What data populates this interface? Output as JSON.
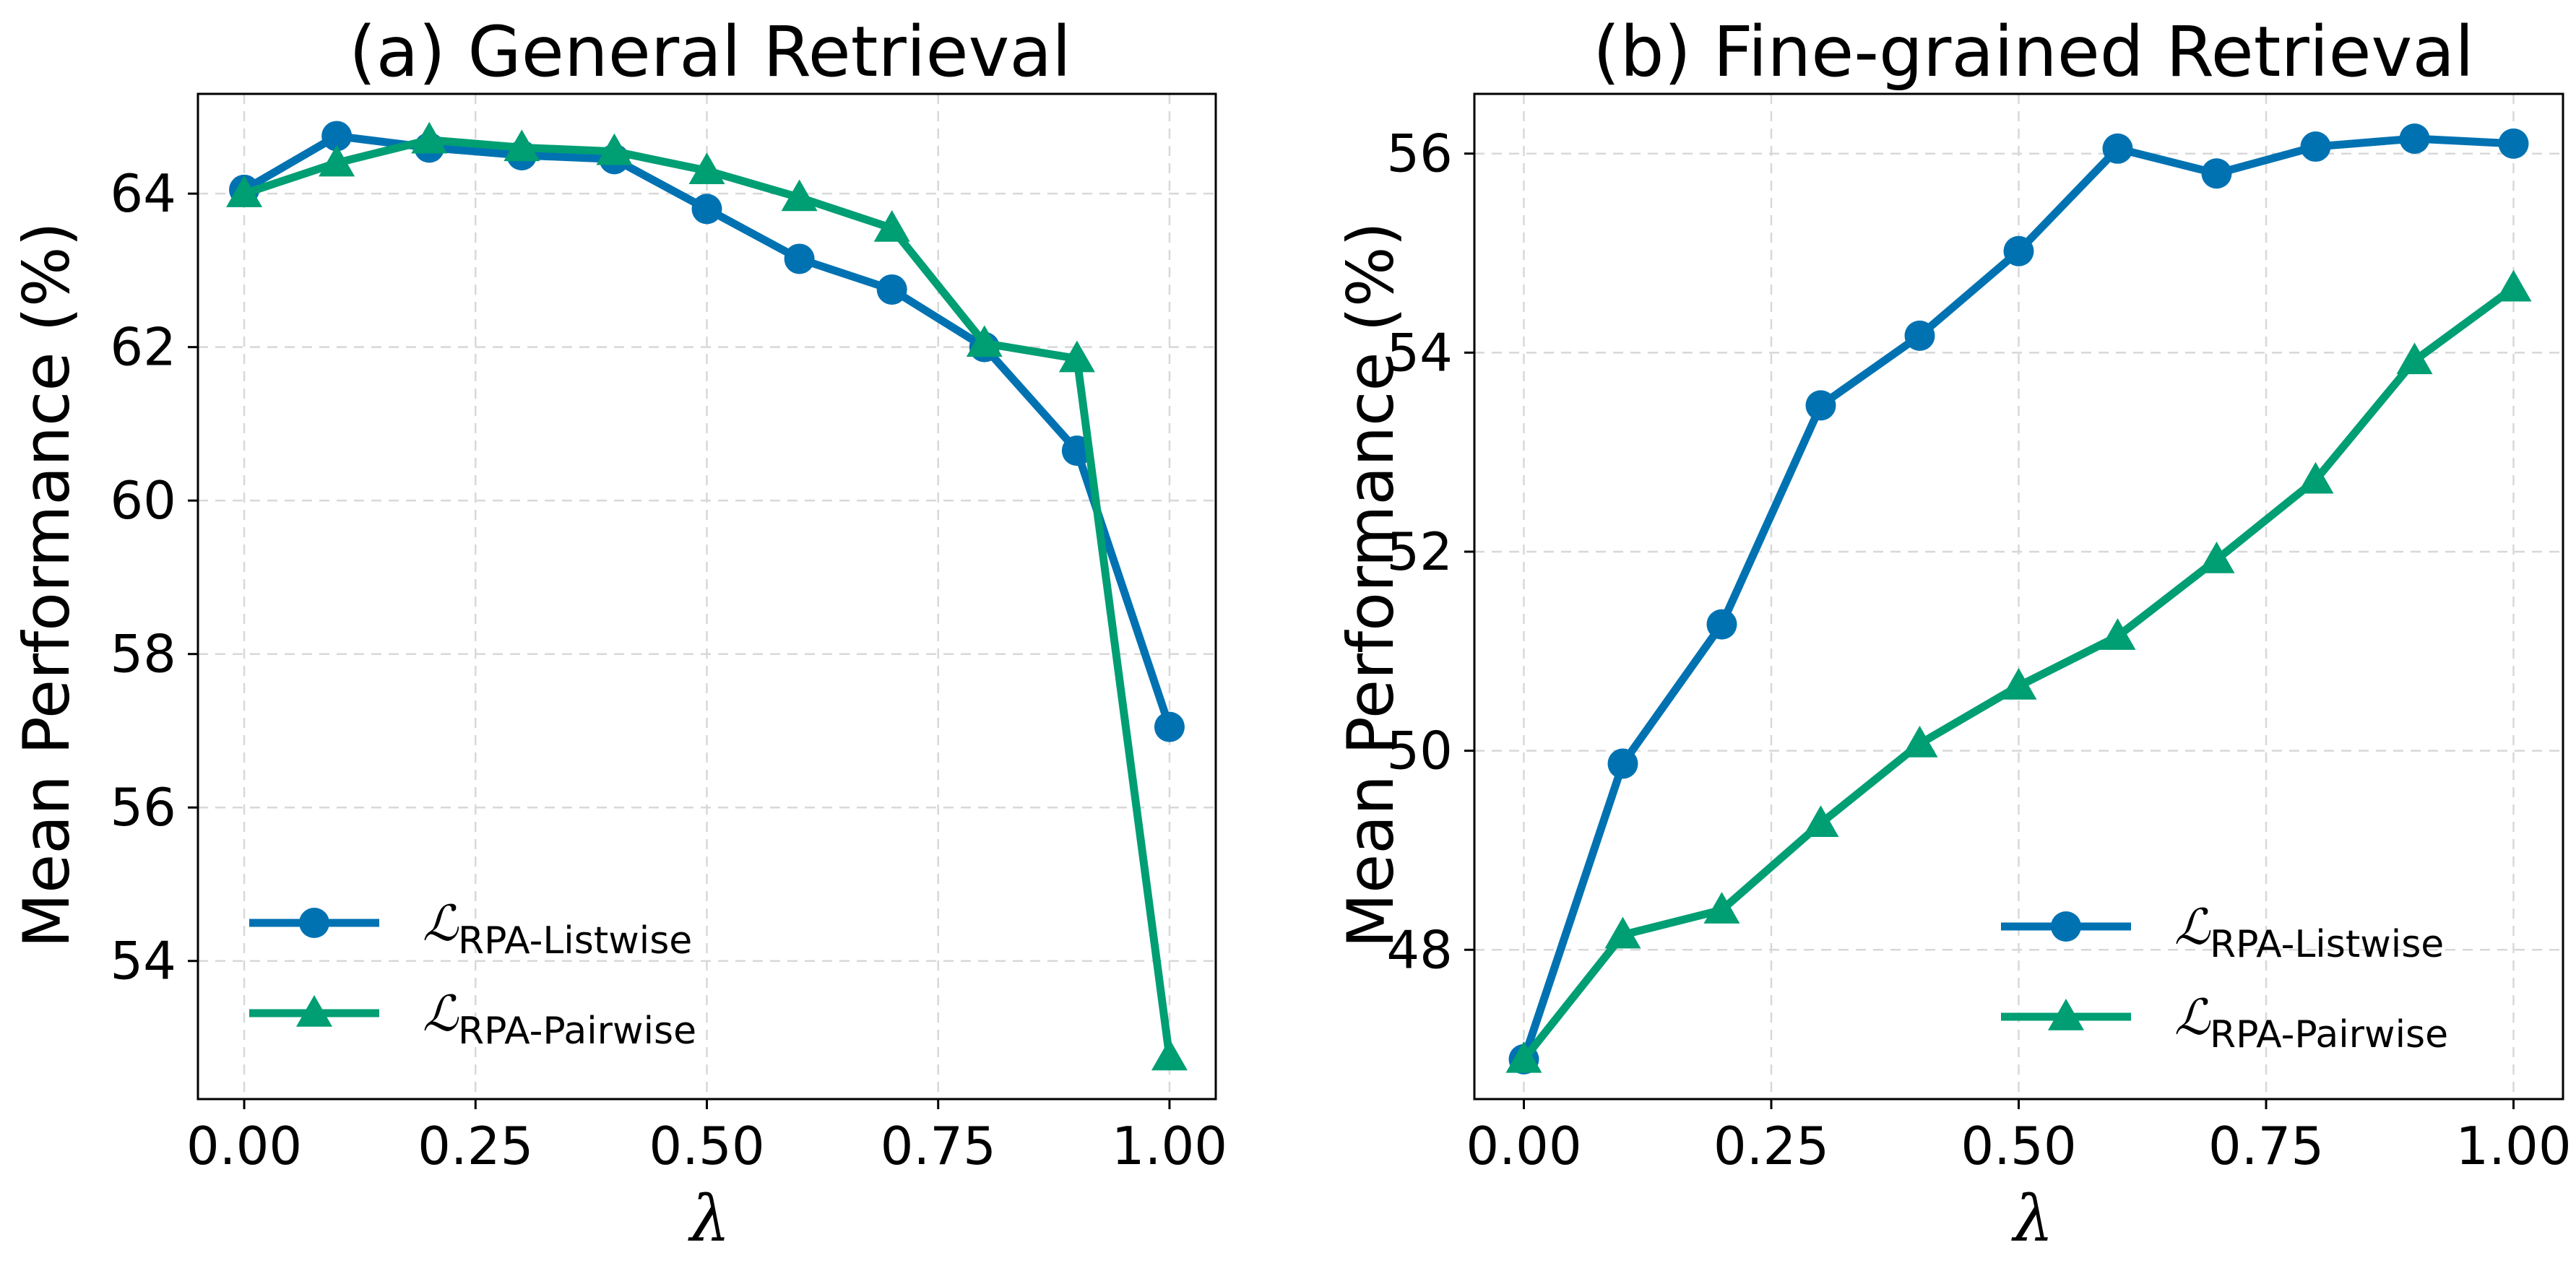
{
  "chart_data": [
    {
      "type": "line",
      "title": "(a) General Retrieval",
      "xlabel": "λ",
      "ylabel": "Mean Performance (%)",
      "xlim": [
        -0.05,
        1.05
      ],
      "ylim": [
        52.2,
        65.3
      ],
      "xticks": [
        0.0,
        0.25,
        0.5,
        0.75,
        1.0
      ],
      "xtick_labels": [
        "0.00",
        "0.25",
        "0.50",
        "0.75",
        "1.00"
      ],
      "yticks": [
        54,
        56,
        58,
        60,
        62,
        64
      ],
      "ytick_labels": [
        "54",
        "56",
        "58",
        "60",
        "62",
        "64"
      ],
      "grid": true,
      "legend_position": "lower-left",
      "x": [
        0.0,
        0.1,
        0.2,
        0.3,
        0.4,
        0.5,
        0.6,
        0.7,
        0.8,
        0.9,
        1.0
      ],
      "series": [
        {
          "name": "RPA-Listwise",
          "legend_symbol": "ℒ",
          "legend_subscript": "RPA-Listwise",
          "color": "#0072B2",
          "marker": "circle",
          "values": [
            64.05,
            64.75,
            64.6,
            64.5,
            64.45,
            63.8,
            63.15,
            62.75,
            62.0,
            60.65,
            57.05
          ]
        },
        {
          "name": "RPA-Pairwise",
          "legend_symbol": "ℒ",
          "legend_subscript": "RPA-Pairwise",
          "color": "#009E73",
          "marker": "triangle",
          "values": [
            64.0,
            64.4,
            64.7,
            64.6,
            64.55,
            64.3,
            63.95,
            63.55,
            62.05,
            61.85,
            52.75
          ]
        }
      ]
    },
    {
      "type": "line",
      "title": "(b) Fine-grained Retrieval",
      "xlabel": "λ",
      "ylabel": "Mean Performance (%)",
      "xlim": [
        -0.05,
        1.05
      ],
      "ylim": [
        46.5,
        56.6
      ],
      "xticks": [
        0.0,
        0.25,
        0.5,
        0.75,
        1.0
      ],
      "xtick_labels": [
        "0.00",
        "0.25",
        "0.50",
        "0.75",
        "1.00"
      ],
      "yticks": [
        48,
        50,
        52,
        54,
        56
      ],
      "ytick_labels": [
        "48",
        "50",
        "52",
        "54",
        "56"
      ],
      "grid": true,
      "legend_position": "lower-right",
      "x": [
        0.0,
        0.1,
        0.2,
        0.3,
        0.4,
        0.5,
        0.6,
        0.7,
        0.8,
        0.9,
        1.0
      ],
      "series": [
        {
          "name": "RPA-Listwise",
          "legend_symbol": "ℒ",
          "legend_subscript": "RPA-Listwise",
          "color": "#0072B2",
          "marker": "circle",
          "values": [
            46.9,
            49.87,
            51.27,
            53.47,
            54.17,
            55.02,
            56.05,
            55.8,
            56.07,
            56.15,
            56.1
          ]
        },
        {
          "name": "RPA-Pairwise",
          "legend_symbol": "ℒ",
          "legend_subscript": "RPA-Pairwise",
          "color": "#009E73",
          "marker": "triangle",
          "values": [
            46.9,
            48.15,
            48.4,
            49.27,
            50.07,
            50.65,
            51.15,
            51.92,
            52.72,
            53.92,
            54.65
          ]
        }
      ]
    }
  ]
}
